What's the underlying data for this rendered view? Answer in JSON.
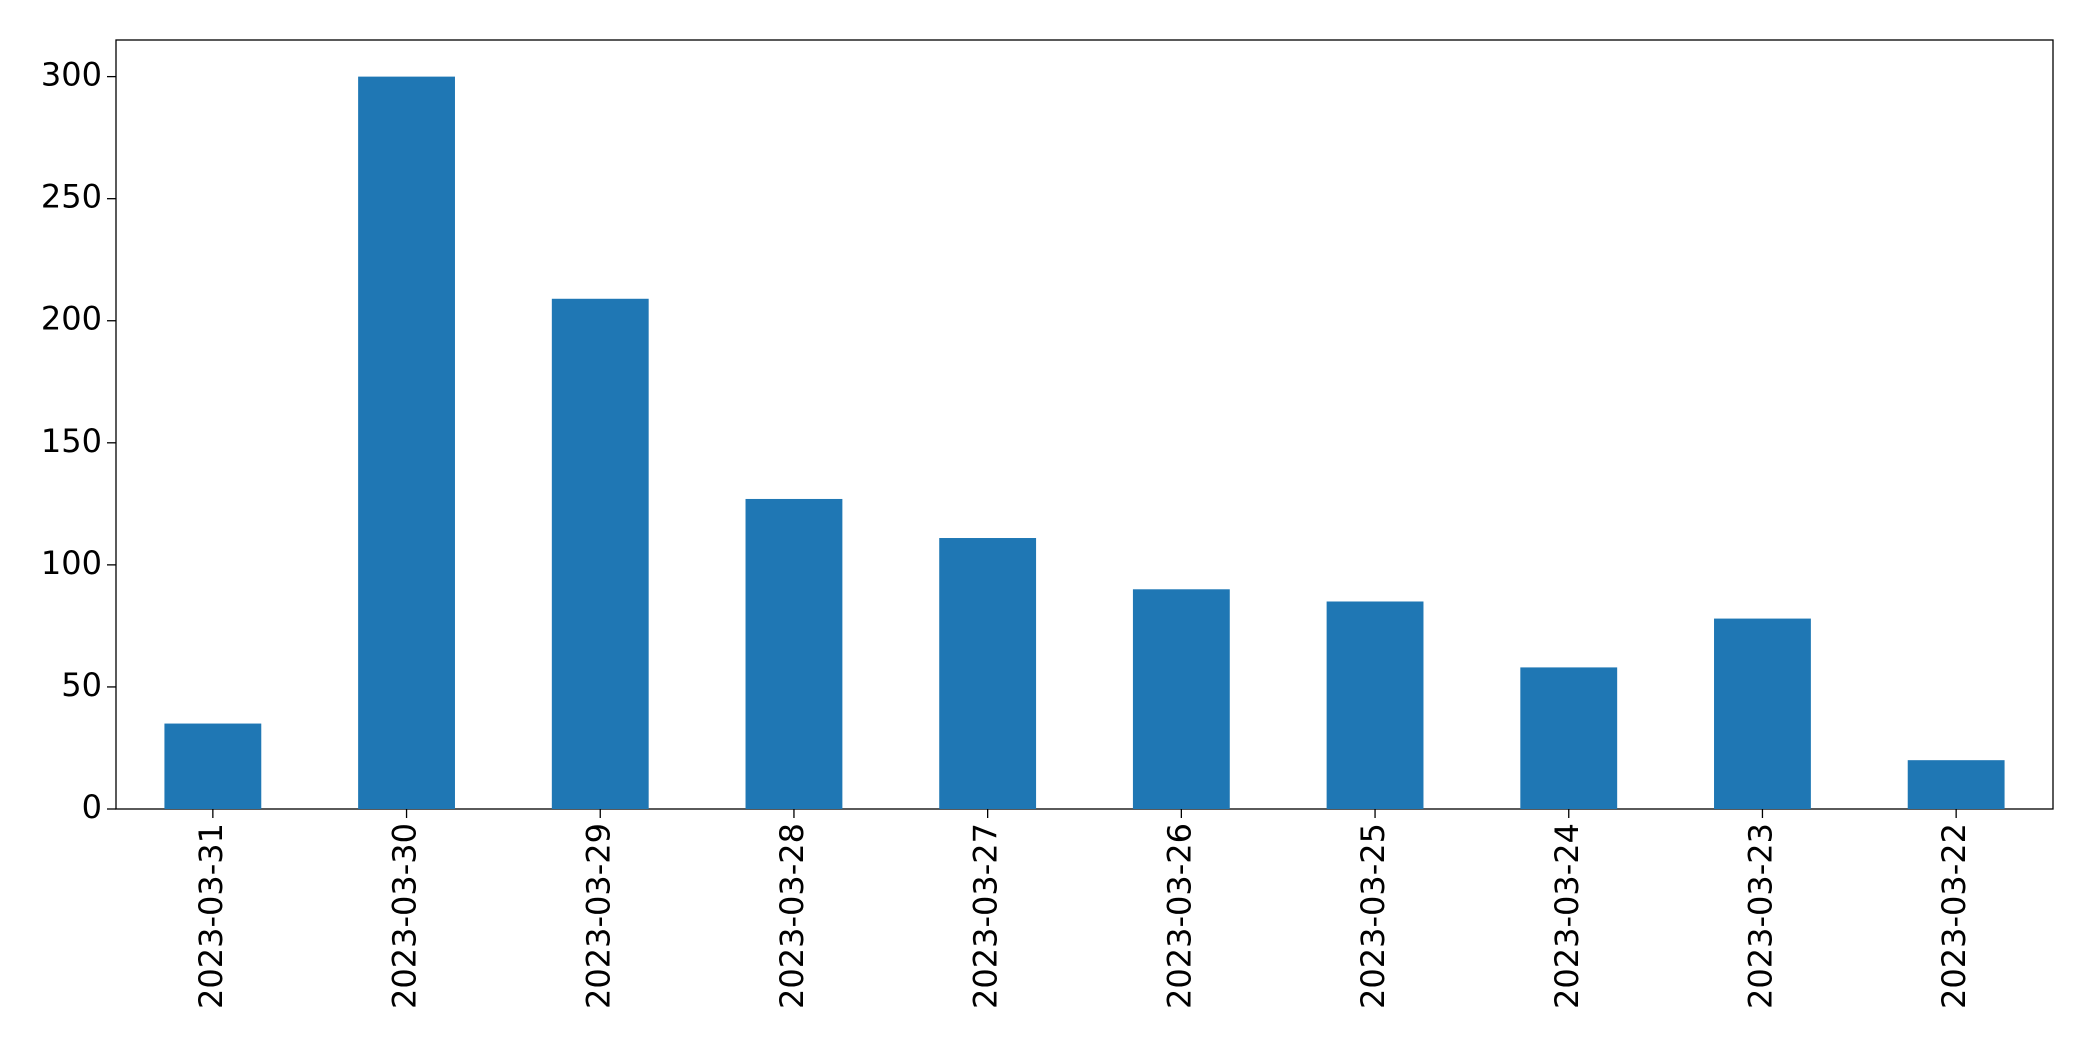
{
  "chart_data": {
    "type": "bar",
    "categories": [
      "2023-03-31",
      "2023-03-30",
      "2023-03-29",
      "2023-03-28",
      "2023-03-27",
      "2023-03-26",
      "2023-03-25",
      "2023-03-24",
      "2023-03-23",
      "2023-03-22"
    ],
    "values": [
      35,
      300,
      209,
      127,
      111,
      90,
      85,
      58,
      78,
      20
    ],
    "color": "#1f77b4",
    "ylim": [
      0,
      315
    ],
    "yticks": [
      0,
      50,
      100,
      150,
      200,
      250,
      300
    ],
    "grid": false
  }
}
